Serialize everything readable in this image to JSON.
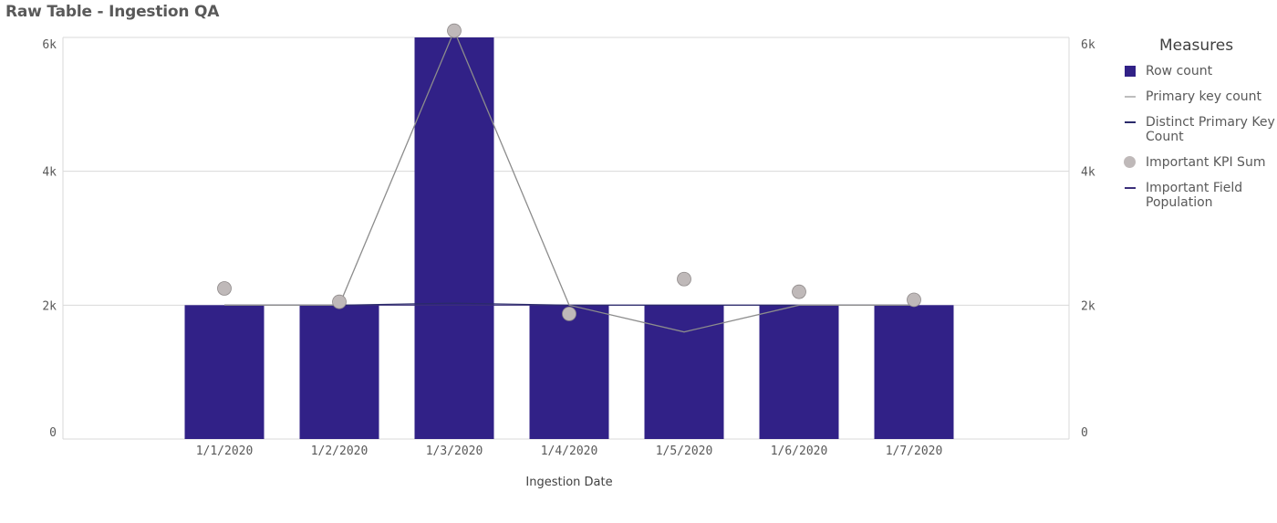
{
  "title": "Raw Table - Ingestion QA",
  "legend": {
    "title": "Measures",
    "items": [
      {
        "label": "Row count",
        "symbol": "square",
        "color": "#312187"
      },
      {
        "label": "Primary key count",
        "symbol": "line",
        "color": "#bdbdbd"
      },
      {
        "label": "Distinct Primary Key Count",
        "symbol": "line",
        "color": "#2a2a6a"
      },
      {
        "label": "Important KPI Sum",
        "symbol": "dot",
        "color": "#bfb9b9"
      },
      {
        "label": "Important Field Population",
        "symbol": "line",
        "color": "#3b2f7a"
      }
    ]
  },
  "chart_data": {
    "type": "bar",
    "xlabel": "Ingestion Date",
    "categories": [
      "1/1/2020",
      "1/2/2020",
      "1/3/2020",
      "1/4/2020",
      "1/5/2020",
      "1/6/2020",
      "1/7/2020"
    ],
    "ylim": [
      0,
      6000
    ],
    "y_ticks": [
      "0",
      "2k",
      "4k",
      "6k"
    ],
    "y2_ticks": [
      "0",
      "2k",
      "4k",
      "6k"
    ],
    "grid": true,
    "legend_position": "right",
    "series": [
      {
        "name": "Row count",
        "type": "bar",
        "color": "#312187",
        "values": [
          2000,
          2000,
          6000,
          2000,
          2000,
          2000,
          2000
        ]
      },
      {
        "name": "Primary key count",
        "type": "line",
        "color": "#8c8c8c",
        "values": [
          2000,
          2000,
          6100,
          2000,
          1600,
          2000,
          2000
        ]
      },
      {
        "name": "Distinct Primary Key Count",
        "type": "line",
        "color": "#2a2a6a",
        "values": [
          2000,
          2000,
          2030,
          2000,
          2000,
          2000,
          2000
        ]
      },
      {
        "name": "Important KPI Sum",
        "type": "scatter",
        "color": "#bfb9b9",
        "values": [
          2250,
          2050,
          6100,
          1870,
          2390,
          2200,
          2080
        ]
      },
      {
        "name": "Important Field Population",
        "type": "line",
        "color": "#3b2f7a",
        "values": [
          2000,
          2000,
          2000,
          2000,
          2000,
          2000,
          2000
        ]
      }
    ]
  }
}
